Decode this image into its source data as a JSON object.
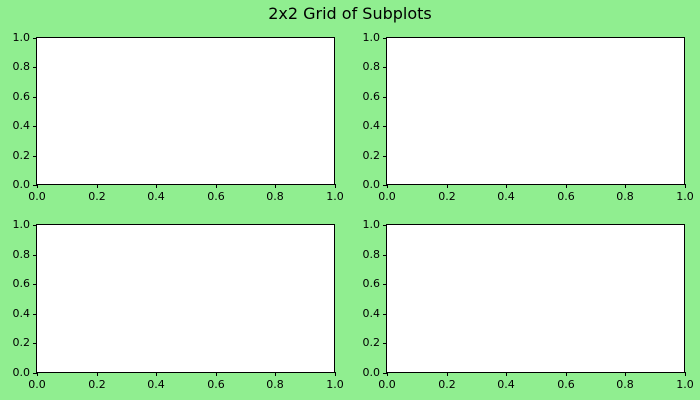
{
  "figure": {
    "title": "2x2 Grid of Subplots",
    "background_color": "#90EE90",
    "axes_face_color": "#FFFFFF",
    "spine_color": "#000000",
    "text_color": "#000000"
  },
  "chart_data": [
    {
      "type": "empty-axes",
      "position": "top-left",
      "title": "",
      "xlabel": "",
      "ylabel": "",
      "xlim": [
        0.0,
        1.0
      ],
      "ylim": [
        0.0,
        1.0
      ],
      "x_ticks": [
        "0.0",
        "0.2",
        "0.4",
        "0.6",
        "0.8",
        "1.0"
      ],
      "y_ticks": [
        "0.0",
        "0.2",
        "0.4",
        "0.6",
        "0.8",
        "1.0"
      ],
      "grid": false,
      "legend": null,
      "series": []
    },
    {
      "type": "empty-axes",
      "position": "top-right",
      "title": "",
      "xlabel": "",
      "ylabel": "",
      "xlim": [
        0.0,
        1.0
      ],
      "ylim": [
        0.0,
        1.0
      ],
      "x_ticks": [
        "0.0",
        "0.2",
        "0.4",
        "0.6",
        "0.8",
        "1.0"
      ],
      "y_ticks": [
        "0.0",
        "0.2",
        "0.4",
        "0.6",
        "0.8",
        "1.0"
      ],
      "grid": false,
      "legend": null,
      "series": []
    },
    {
      "type": "empty-axes",
      "position": "bottom-left",
      "title": "",
      "xlabel": "",
      "ylabel": "",
      "xlim": [
        0.0,
        1.0
      ],
      "ylim": [
        0.0,
        1.0
      ],
      "x_ticks": [
        "0.0",
        "0.2",
        "0.4",
        "0.6",
        "0.8",
        "1.0"
      ],
      "y_ticks": [
        "0.0",
        "0.2",
        "0.4",
        "0.6",
        "0.8",
        "1.0"
      ],
      "grid": false,
      "legend": null,
      "series": []
    },
    {
      "type": "empty-axes",
      "position": "bottom-right",
      "title": "",
      "xlabel": "",
      "ylabel": "",
      "xlim": [
        0.0,
        1.0
      ],
      "ylim": [
        0.0,
        1.0
      ],
      "x_ticks": [
        "0.0",
        "0.2",
        "0.4",
        "0.6",
        "0.8",
        "1.0"
      ],
      "y_ticks": [
        "0.0",
        "0.2",
        "0.4",
        "0.6",
        "0.8",
        "1.0"
      ],
      "grid": false,
      "legend": null,
      "series": []
    }
  ]
}
